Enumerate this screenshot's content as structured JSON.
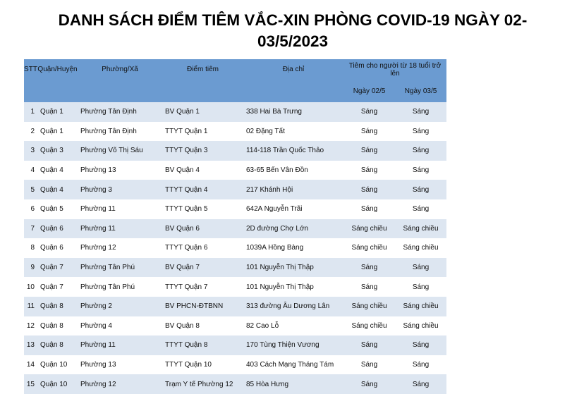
{
  "title": "DANH SÁCH ĐIỂM TIÊM VẮC-XIN PHÒNG COVID-19 NGÀY 02-03/5/2023",
  "headers": {
    "stt": "STT",
    "district": "Quận/Huyện",
    "ward": "Phường/Xã",
    "site": "Điểm tiêm",
    "address": "Địa chỉ",
    "group": "Tiêm cho người từ 18 tuổi trở lên",
    "day1": "Ngày 02/5",
    "day2": "Ngày 03/5"
  },
  "rows": [
    [
      "1",
      "Quận 1",
      "Phường Tân Định",
      "BV Quận 1",
      "338 Hai Bà Trưng",
      "Sáng",
      "Sáng"
    ],
    [
      "2",
      "Quận 1",
      "Phường Tân Định",
      "TTYT Quận 1",
      "02 Đặng Tất",
      "Sáng",
      "Sáng"
    ],
    [
      "3",
      "Quận 3",
      "Phường Võ Thị Sáu",
      "TTYT Quận 3",
      "114-118 Trần Quốc Thảo",
      "Sáng",
      "Sáng"
    ],
    [
      "4",
      "Quận 4",
      "Phường 13",
      "BV Quận 4",
      "63-65 Bến Vân Đồn",
      "Sáng",
      "Sáng"
    ],
    [
      "5",
      "Quận 4",
      "Phường 3",
      "TTYT Quận 4",
      "217 Khánh Hội",
      "Sáng",
      "Sáng"
    ],
    [
      "6",
      "Quận 5",
      "Phường 11",
      "TTYT Quận 5",
      "642A Nguyễn Trãi",
      "Sáng",
      "Sáng"
    ],
    [
      "7",
      "Quận 6",
      "Phường 11",
      "BV Quận 6",
      "2D đường Chợ Lớn",
      "Sáng chiều",
      "Sáng chiều"
    ],
    [
      "8",
      "Quận 6",
      "Phường 12",
      "TTYT Quận 6",
      "1039A Hồng Bàng",
      "Sáng chiều",
      "Sáng chiều"
    ],
    [
      "9",
      "Quận 7",
      "Phường Tân Phú",
      "BV Quận 7",
      "101 Nguyễn Thị Thập",
      "Sáng",
      "Sáng"
    ],
    [
      "10",
      "Quận 7",
      "Phường Tân Phú",
      "TTYT Quận 7",
      "101 Nguyễn Thị Thập",
      "Sáng",
      "Sáng"
    ],
    [
      "11",
      "Quận 8",
      "Phường 2",
      "BV PHCN-ĐTBNN",
      "313 đường Âu Dương Lân",
      "Sáng chiều",
      "Sáng chiều"
    ],
    [
      "12",
      "Quận 8",
      "Phường 4",
      "BV Quận 8",
      "82 Cao Lỗ",
      "Sáng chiều",
      "Sáng chiều"
    ],
    [
      "13",
      "Quận 8",
      "Phường 11",
      "TTYT Quận 8",
      "170 Tùng Thiện Vương",
      "Sáng",
      "Sáng"
    ],
    [
      "14",
      "Quận 10",
      "Phường 13",
      "TTYT Quận 10",
      "403 Cách Mạng Tháng Tám",
      "Sáng",
      "Sáng"
    ],
    [
      "15",
      "Quận 10",
      "Phường 12",
      "Trạm Y tế Phường 12",
      "85 Hòa Hưng",
      "Sáng",
      "Sáng"
    ]
  ]
}
